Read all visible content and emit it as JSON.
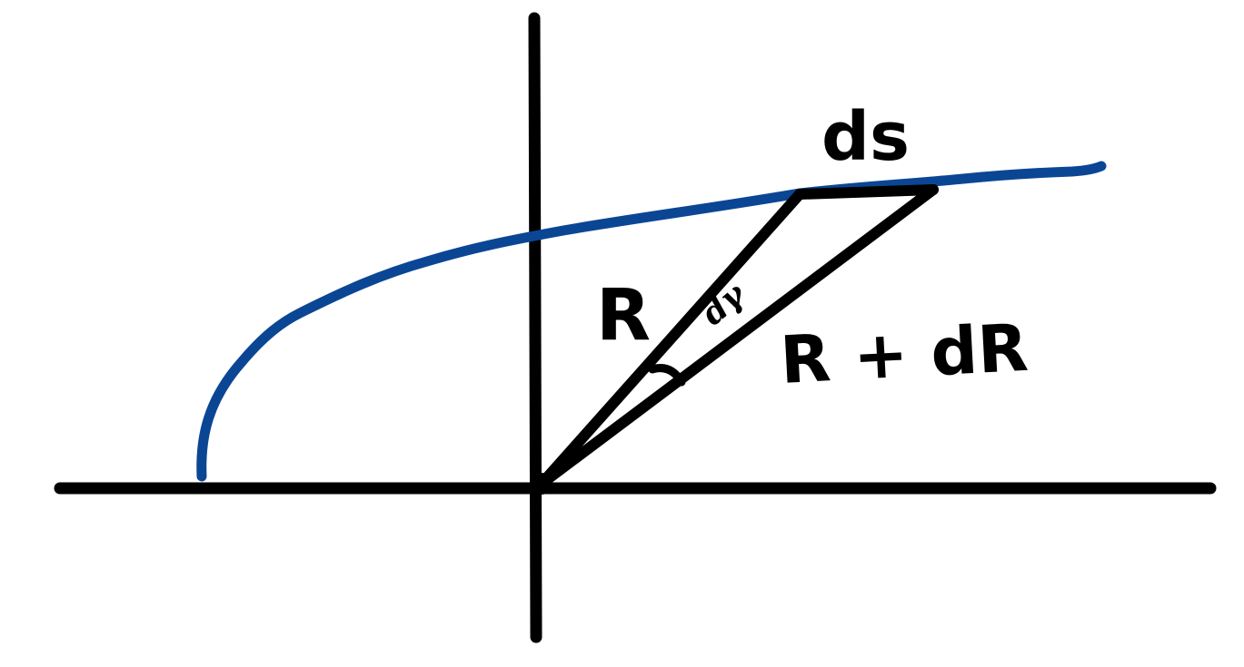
{
  "labels": {
    "ds": "ds",
    "r": "R",
    "r_plus_dr": "R + dR",
    "dgamma": "dγ"
  },
  "colors": {
    "background": "#ffffff",
    "ink": "#000000",
    "curve": "#0b4694"
  }
}
